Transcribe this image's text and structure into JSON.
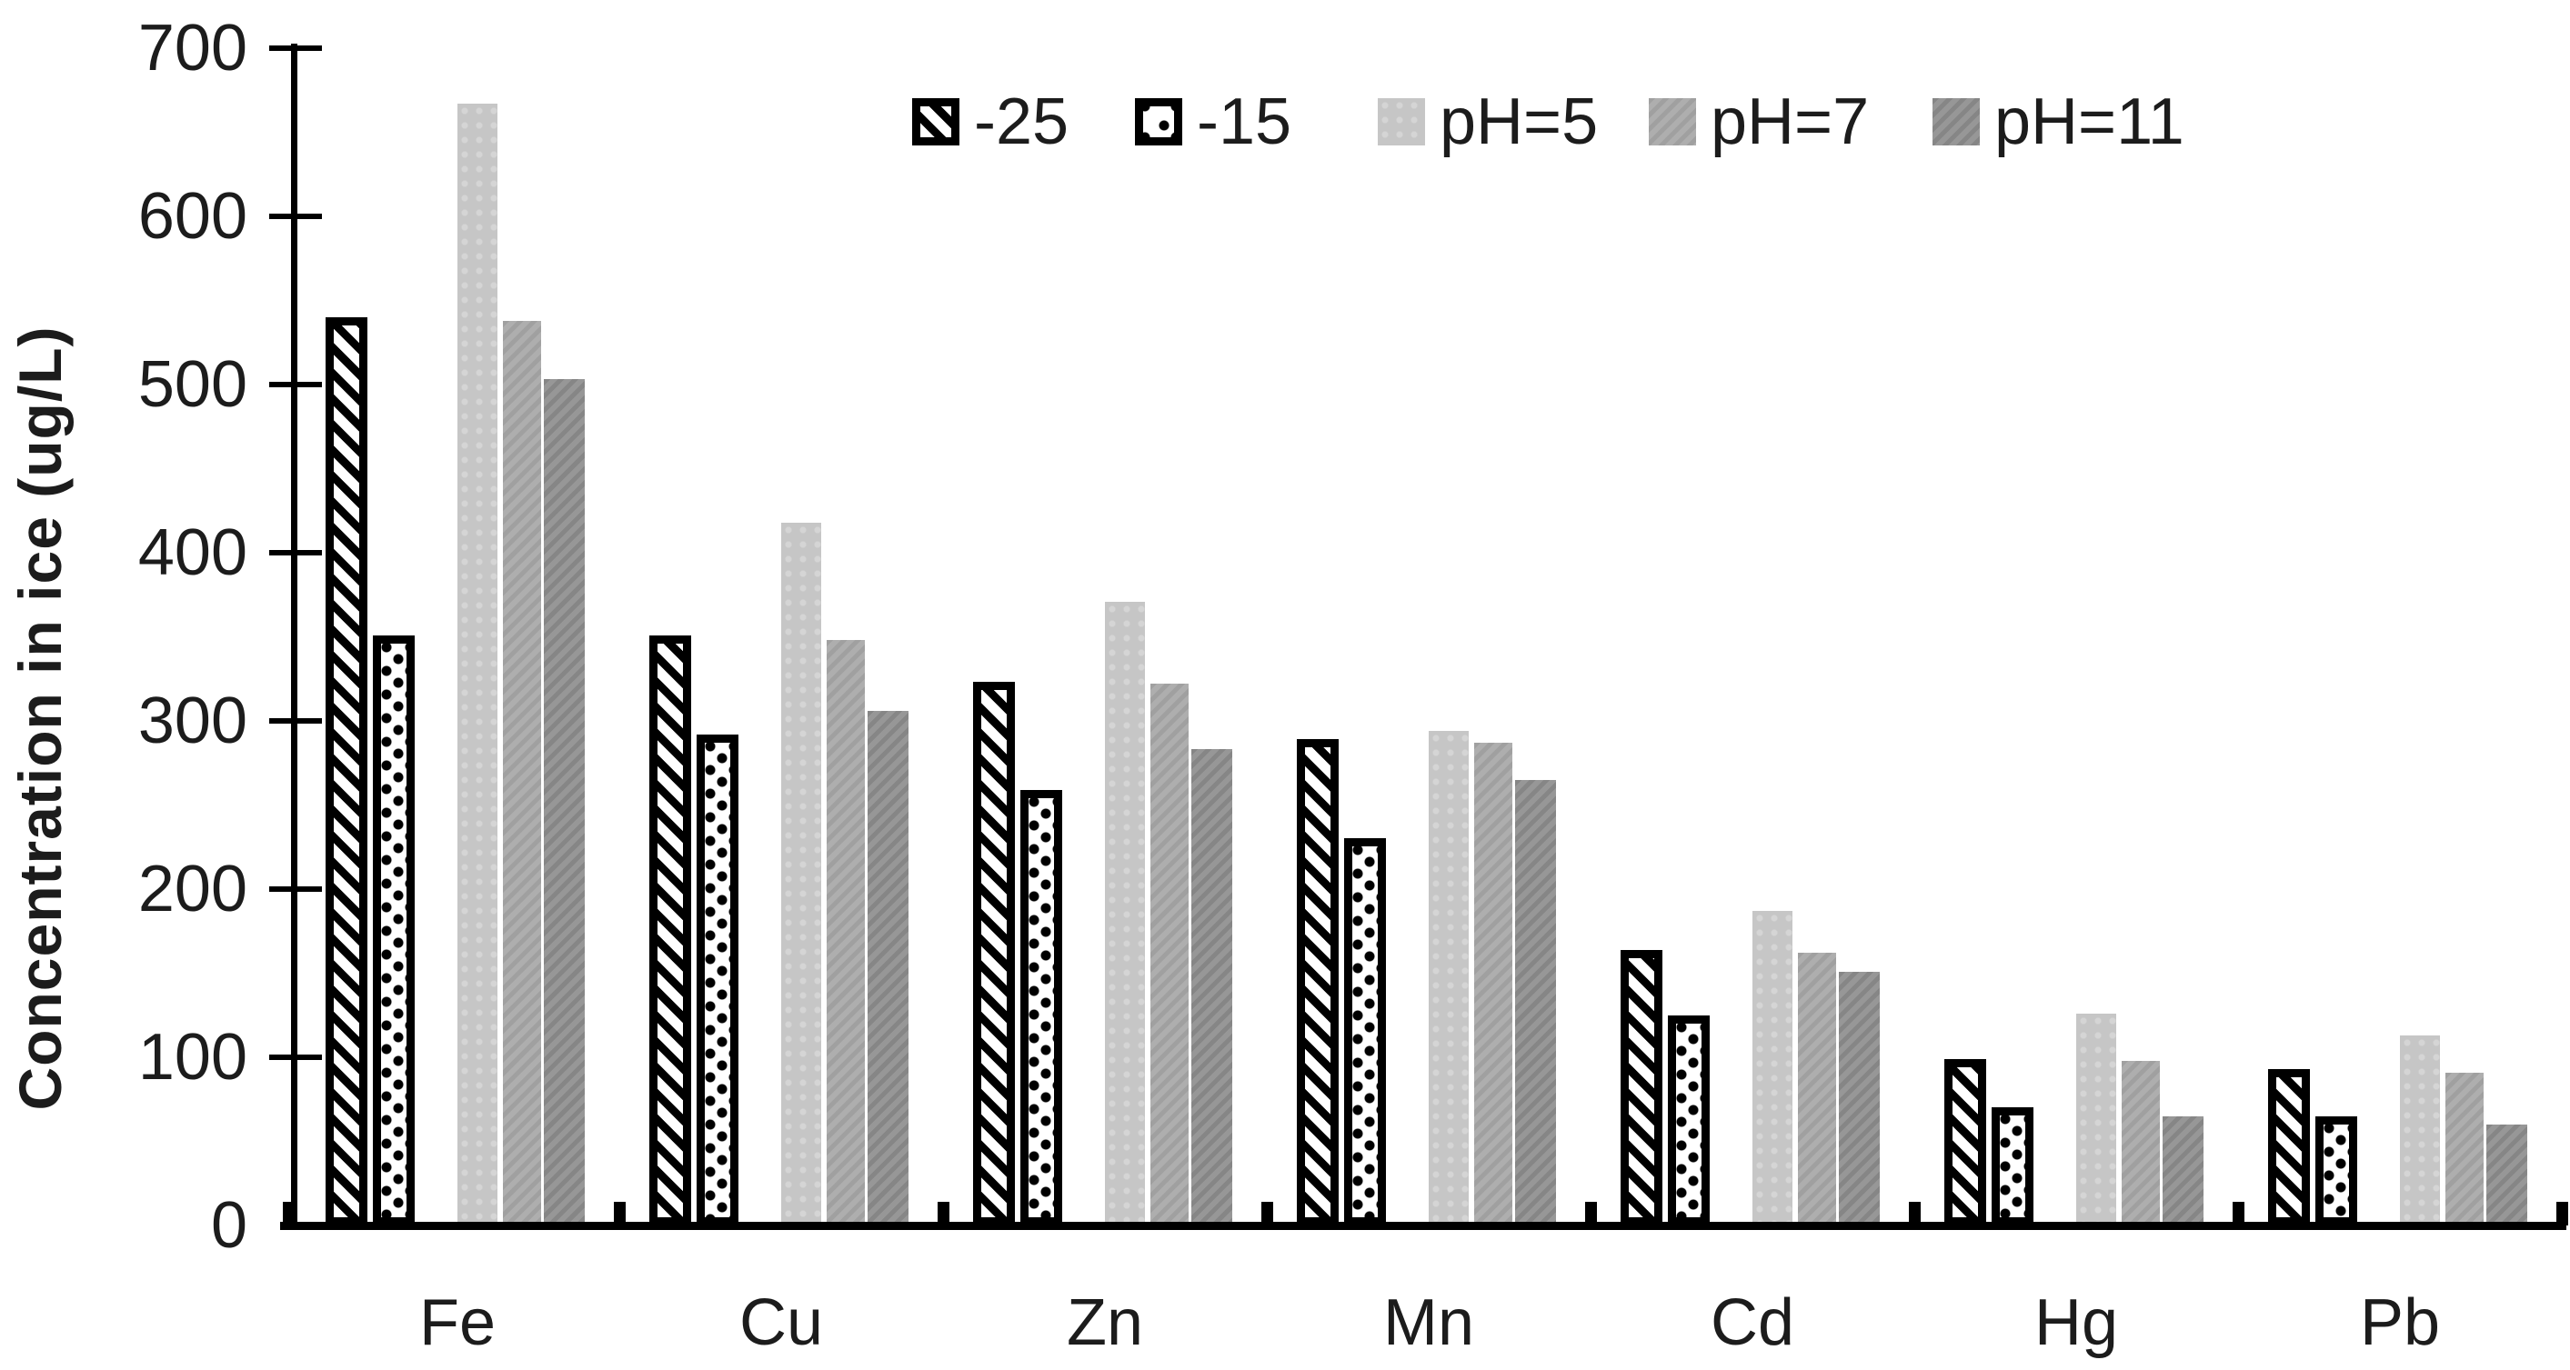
{
  "chart_data": {
    "type": "bar",
    "title": "",
    "xlabel": "",
    "ylabel": "Concentration in ice (ug/L)",
    "ylim": [
      0,
      700
    ],
    "yticks": [
      0,
      100,
      200,
      300,
      400,
      500,
      600,
      700
    ],
    "grid": false,
    "legend_position": "top-center",
    "categories": [
      "Fe",
      "Cu",
      "Zn",
      "Mn",
      "Cd",
      "Hg",
      "Pb"
    ],
    "series": [
      {
        "name": "-25",
        "style": "diagonal-hatch-black-border",
        "color": "#000000",
        "values": [
          540,
          351,
          323,
          289,
          164,
          99,
          93
        ]
      },
      {
        "name": "-15",
        "style": "dotted-black-border",
        "color": "#000000",
        "values": [
          351,
          292,
          259,
          230,
          125,
          70,
          65
        ]
      },
      {
        "name": "pH=5",
        "style": "solid-light-gray",
        "color": "#c6c6c6",
        "values": [
          667,
          418,
          371,
          294,
          187,
          126,
          113
        ]
      },
      {
        "name": "pH=7",
        "style": "solid-medium-gray",
        "color": "#a6a6a6",
        "values": [
          538,
          348,
          322,
          287,
          162,
          98,
          91
        ]
      },
      {
        "name": "pH=11",
        "style": "solid-dark-gray",
        "color": "#8f8f8f",
        "values": [
          503,
          306,
          283,
          265,
          151,
          65,
          60
        ]
      }
    ]
  }
}
